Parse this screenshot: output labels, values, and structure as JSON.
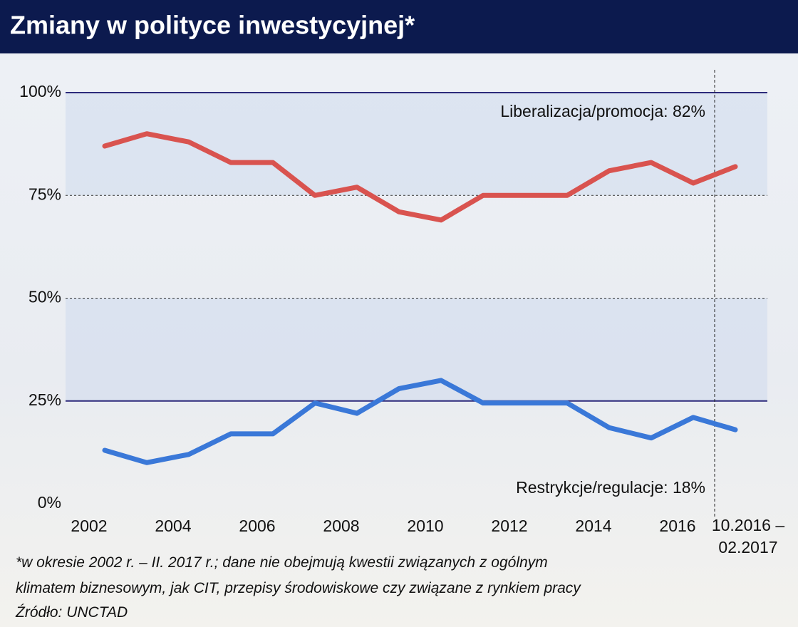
{
  "chart_data": {
    "type": "line",
    "title": "Zmiany w polityce inwestycyjnej*",
    "categories": [
      "2002",
      null,
      "2004",
      null,
      "2006",
      null,
      "2008",
      null,
      "2010",
      null,
      "2012",
      null,
      "2014",
      null,
      "2016",
      "10.2016 – 02.2017"
    ],
    "series": [
      {
        "color": "#d9534f",
        "values": [
          87,
          90,
          88,
          83,
          83,
          75,
          77,
          71,
          69,
          75,
          75,
          75,
          81,
          83,
          78,
          82
        ]
      },
      {
        "color": "#3a78d8",
        "values": [
          13,
          10,
          12,
          17,
          17,
          24.5,
          22,
          28,
          30,
          24.5,
          24.5,
          24.5,
          18.5,
          16,
          21,
          18
        ]
      }
    ],
    "ylim": [
      0,
      100
    ],
    "yticks": [
      {
        "value": 0,
        "label": "0%"
      },
      {
        "value": 25,
        "label": "25%"
      },
      {
        "value": 50,
        "label": "50%"
      },
      {
        "value": 75,
        "label": "75%"
      },
      {
        "value": 100,
        "label": "100%"
      }
    ],
    "grid": true,
    "annotations": [
      "Liberalizacja/promocja: 82%",
      "Restrykcje/regulacje: 18%"
    ],
    "footnote": [
      "*w okresie 2002 r. – II. 2017 r.; dane nie obejmują kwestii związanych z ogólnym",
      "klimatem biznesowym, jak CIT, przepisy środowiskowe czy związane z rynkiem pracy"
    ],
    "source": "Źródło: UNCTAD"
  }
}
